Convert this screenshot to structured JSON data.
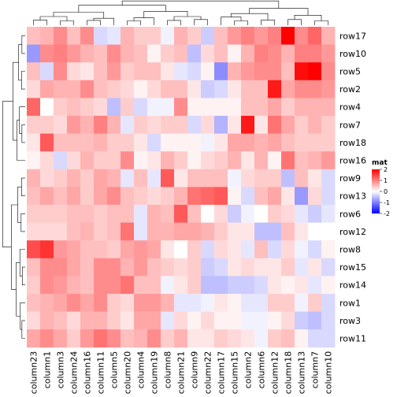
{
  "chart_data": {
    "type": "heatmap",
    "legend": {
      "title": "mat",
      "ticks": [
        "2",
        "1",
        "0",
        "-1",
        "-2"
      ],
      "colors": {
        "high": "#ff0000",
        "mid": "#ffffff",
        "low": "#0000ff"
      }
    },
    "rows": [
      "row17",
      "row10",
      "row5",
      "row2",
      "row4",
      "row7",
      "row18",
      "row16",
      "row9",
      "row13",
      "row6",
      "row12",
      "row8",
      "row15",
      "row14",
      "row1",
      "row3",
      "row11"
    ],
    "columns": [
      "column23",
      "column1",
      "column3",
      "column24",
      "column16",
      "column11",
      "column5",
      "column20",
      "column4",
      "column19",
      "column8",
      "column21",
      "column9",
      "column22",
      "column17",
      "column15",
      "column2",
      "column6",
      "column12",
      "column18",
      "column13",
      "column7",
      "column10"
    ],
    "values": [
      [
        0.5,
        0.6,
        0.9,
        0.5,
        0.9,
        -0.3,
        -0.2,
        0.6,
        0.4,
        0.4,
        -0.1,
        0.6,
        0.4,
        -0.4,
        0.5,
        0.8,
        1.0,
        0.8,
        1.0,
        2.0,
        0.9,
        1.2,
        0.6
      ],
      [
        -0.8,
        0.9,
        1.0,
        0.8,
        0.6,
        0.5,
        0.9,
        0.6,
        0.5,
        0.1,
        0.4,
        0.5,
        -0.5,
        0.3,
        0.5,
        0.1,
        0.6,
        1.0,
        0.9,
        0.6,
        1.0,
        1.0,
        0.8
      ],
      [
        0.5,
        -0.3,
        0.9,
        0.3,
        0.2,
        0.5,
        0.8,
        0.4,
        0.5,
        0.5,
        0.2,
        -0.2,
        -0.3,
        0.1,
        -0.9,
        0.6,
        0.8,
        0.9,
        0.9,
        0.5,
        1.9,
        2.0,
        0.9
      ],
      [
        0.3,
        0.7,
        0.6,
        0.6,
        0.9,
        0.5,
        0.4,
        0.3,
        0.1,
        0.3,
        0.5,
        0.5,
        0.2,
        -0.4,
        -0.3,
        0.2,
        0.5,
        0.5,
        1.8,
        0.7,
        0.9,
        0.9,
        0.8
      ],
      [
        1.2,
        0.0,
        0.4,
        0.5,
        0.4,
        0.3,
        -0.5,
        0.4,
        -0.3,
        -0.1,
        -0.1,
        0.9,
        0.1,
        0.1,
        0.1,
        0.1,
        0.5,
        0.5,
        0.7,
        0.4,
        0.6,
        0.6,
        0.6
      ],
      [
        0.4,
        0.4,
        0.3,
        0.8,
        0.6,
        1.0,
        0.6,
        -0.2,
        0.4,
        0.3,
        0.4,
        0.4,
        -0.3,
        0.3,
        -0.6,
        0.2,
        1.8,
        0.2,
        1.1,
        0.7,
        0.4,
        0.6,
        0.4
      ],
      [
        0.2,
        1.3,
        0.5,
        0.5,
        0.5,
        0.6,
        0.4,
        0.4,
        0.2,
        -0.3,
        0.1,
        0.1,
        0.1,
        -0.1,
        0.2,
        0.7,
        0.7,
        0.6,
        0.7,
        0.5,
        0.4,
        0.4,
        0.4
      ],
      [
        0.1,
        0.3,
        -0.3,
        0.3,
        0.6,
        0.4,
        0.4,
        0.9,
        0.1,
        0.2,
        0.6,
        0.4,
        0.1,
        0.3,
        0.4,
        0.6,
        0.2,
        0.6,
        0.1,
        1.1,
        0.5,
        0.6,
        0.8
      ],
      [
        0.6,
        0.3,
        0.4,
        0.6,
        0.4,
        0.7,
        0.6,
        -0.2,
        0.5,
        -0.2,
        1.3,
        0.2,
        0.5,
        0.5,
        0.5,
        -0.1,
        0.3,
        0.4,
        0.4,
        -0.5,
        0.5,
        0.2,
        -0.3
      ],
      [
        0.5,
        0.7,
        0.5,
        0.7,
        0.4,
        0.7,
        0.9,
        0.5,
        0.4,
        0.3,
        0.4,
        0.6,
        1.1,
        1.2,
        1.3,
        0.1,
        -0.3,
        0.5,
        0.7,
        0.2,
        -0.8,
        0.3,
        -0.3
      ],
      [
        0.4,
        0.4,
        0.4,
        0.5,
        0.5,
        0.4,
        0.5,
        0.5,
        -0.2,
        0.6,
        0.5,
        1.3,
        0.5,
        0.0,
        0.3,
        -0.4,
        -0.1,
        0.0,
        0.4,
        0.3,
        -0.2,
        -0.4,
        -0.2
      ],
      [
        0.3,
        0.3,
        0.3,
        0.5,
        0.6,
        0.4,
        0.5,
        1.1,
        -0.2,
        0.6,
        0.6,
        0.7,
        0.7,
        0.6,
        0.4,
        0.2,
        0.2,
        -0.5,
        -0.5,
        0.5,
        0.2,
        0.0,
        0.0
      ],
      [
        1.4,
        1.6,
        0.8,
        0.7,
        0.5,
        0.5,
        0.4,
        0.7,
        0.8,
        0.7,
        0.2,
        0.0,
        0.4,
        -0.3,
        0.3,
        0.2,
        -0.2,
        0.5,
        -0.3,
        0.3,
        -0.1,
        -0.3,
        0.1
      ],
      [
        0.5,
        0.9,
        0.9,
        0.7,
        0.5,
        0.9,
        0.9,
        0.6,
        0.8,
        0.5,
        0.4,
        0.3,
        0.4,
        -0.4,
        -0.3,
        0.2,
        0.3,
        0.2,
        0.2,
        0.4,
        -0.2,
        0.2,
        -0.3
      ],
      [
        0.4,
        0.9,
        0.8,
        0.6,
        0.5,
        0.9,
        0.9,
        1.1,
        0.5,
        0.5,
        -0.1,
        0.2,
        0.4,
        -0.5,
        -0.5,
        -0.4,
        -0.4,
        -0.3,
        0.2,
        0.1,
        0.2,
        -0.2,
        0.1
      ],
      [
        0.5,
        0.6,
        0.7,
        0.9,
        0.7,
        0.9,
        0.4,
        0.3,
        0.8,
        0.8,
        0.6,
        -0.2,
        -0.2,
        -0.1,
        0.2,
        0.1,
        -0.2,
        -0.2,
        0.4,
        0.4,
        -0.1,
        0.4,
        -0.3
      ],
      [
        0.3,
        0.6,
        0.5,
        0.3,
        0.6,
        0.6,
        0.4,
        0.2,
        0.7,
        0.7,
        -0.2,
        0.3,
        0.1,
        0.3,
        0.1,
        0.1,
        -0.1,
        -0.1,
        0.1,
        0.3,
        -0.4,
        -0.5,
        -0.3
      ],
      [
        0.7,
        0.9,
        0.7,
        0.4,
        0.8,
        1.1,
        0.9,
        0.5,
        0.6,
        0.9,
        0.4,
        0.6,
        0.2,
        0.2,
        0.4,
        0.3,
        0.2,
        -0.1,
        0.4,
        0.5,
        0.1,
        -0.3,
        -0.3
      ]
    ]
  }
}
